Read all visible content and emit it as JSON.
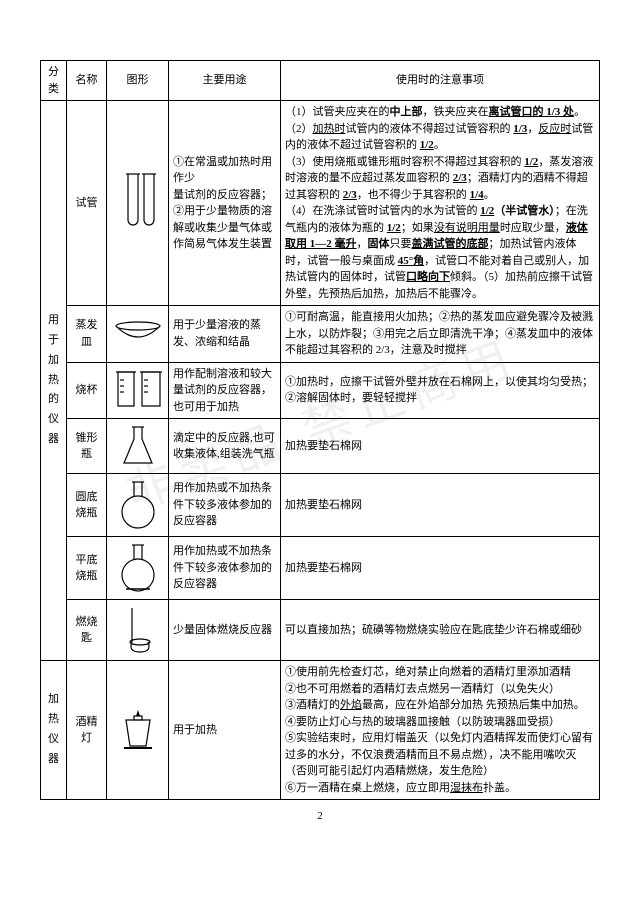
{
  "columns": {
    "cat": "分类",
    "name": "名称",
    "figure": "图形",
    "use": "主要用途",
    "note": "使用时的注意事项"
  },
  "col_widths": [
    "26px",
    "40px",
    "62px",
    "112px",
    "auto"
  ],
  "page_number": "2",
  "watermark": "非卖品 禁止商用",
  "categories": [
    {
      "label": "用于加热的仪器",
      "rows": [
        {
          "name": "试管",
          "icon": "test-tube",
          "use": "①在常温或加热时用作少\n量试剂的反应容器；\n②用于少量物质的溶解或收集少量气体或作简易气体发生装置",
          "note": "（1）试管夹应夹在的<b>中上部</b>，铁夹应夹在<b><u>离试管口的 1/3 处</u></b>。（2）<u>加热时</u>试管内的液体不得超过试管容积的 <b><u>1/3</u></b>，<u>反应时</u>试管内的液体不超过试管容积的 <b><u>1/2</u></b>。\n（3）使用烧瓶或锥形瓶时容积不得超过其容积的 <b><u>1/2</u></b>，蒸发溶液时溶液的量不应超过蒸发皿容积的 <b><u>2/3</u></b>；酒精灯内的酒精不得超过其容积的 <b><u>2/3</u></b>，也不得少于其容积的 <b><u>1/4</u></b>。\n（4）在洗涤试管时试管内的水为试管的 <b><u>1/2</u>（半试管水）</b>；在洗气瓶内的液体为瓶的 <b><u>1/2</u></b>；如果<u>没有说明用量</u>时应取少量，<b><u>液体取用 1—2 毫升</u></b>，<b>固体</b>只要<b><u>盖满试管的底部</u></b>；加热试管内液体时，试管一般与桌面成 <b><u>45°角</u></b>，试管口不能对着自己或别人，加热试管内的固体时，试管<b><u>口略向下</u></b>倾斜。（5）加热前应擦干试管外壁，先预热后加热，加热后不能骤冷。"
        },
        {
          "name": "蒸发皿",
          "icon": "evaporating-dish",
          "use": "用于少量溶液的蒸发、浓缩和结晶",
          "note": "①可耐高温，能直接用火加热；②热的蒸发皿应避免骤冷及被溅上水，以防炸裂；③用完之后立即清洗干净；④蒸发皿中的液体不能超过其容积的 2/3，注意及时搅拌"
        },
        {
          "name": "烧杯",
          "icon": "beaker",
          "use": "用作配制溶液和较大量试剂的反应容器，也可用于加热",
          "note": "①加热时，应擦干试管外壁并放在石棉网上，以使其均匀受热；\n②溶解固体时，要轻轻搅拌"
        },
        {
          "name": "锥形瓶",
          "icon": "erlenmeyer-flask",
          "use": "滴定中的反应器,也可收集液体,组装洗气瓶",
          "note": "加热要垫石棉网"
        },
        {
          "name": "圆底烧瓶",
          "icon": "round-bottom-flask",
          "use": "用作加热或不加热条件下较多液体参加的反应容器",
          "note": "加热要垫石棉网"
        },
        {
          "name": "平底烧瓶",
          "icon": "flat-bottom-flask",
          "use": "用作加热或不加热条件下较多液体参加的反应容器",
          "note": "加热要垫石棉网"
        },
        {
          "name": "燃烧匙",
          "icon": "combustion-spoon",
          "use": "少量固体燃烧反应器",
          "note": "可以直接加热；硫磺等物燃烧实验应在匙底垫少许石棉或细砂"
        }
      ]
    },
    {
      "label": "加热仪器",
      "rows": [
        {
          "name": "酒精灯",
          "icon": "alcohol-lamp",
          "use": "用于加热",
          "note": "①使用前先检查灯芯，绝对禁止向燃着的酒精灯里添加酒精\n②也不可用燃着的酒精灯去点燃另一酒精灯（以免失火）\n③酒精灯的<u>外焰</u>最高，应在外焰部分加热 先预热后集中加热。\n④要防止灯心与热的玻璃器皿接触（以防玻璃器皿受损）\n⑤实验结束时，应用灯帽盖灭（以免灯内酒精挥发而使灯心留有过多的水分，不仅浪费酒精而且不易点燃），决不能用嘴吹灭（否则可能引起灯内酒精燃烧，发生危险）\n⑥万一酒精在桌上燃烧，应立即用<u>湿抹布</u>扑盖。"
        }
      ]
    }
  ]
}
